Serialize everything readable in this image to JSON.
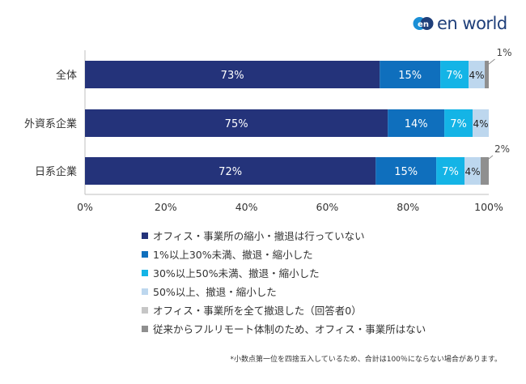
{
  "logo": {
    "mark_text": "en",
    "word": "en world"
  },
  "colors": {
    "none": "#24337a",
    "s1": "#0f6fbd",
    "s2": "#14b4e6",
    "s3": "#bdd7ee",
    "s4": "#c6c6c6",
    "s5": "#8f8f8f",
    "axis": "#bfbfbf",
    "logo_blue": "#1f3f7a",
    "logo_mark": "#1a8fd6"
  },
  "chart_data": {
    "type": "bar",
    "orientation": "horizontal",
    "stacked": true,
    "categories": [
      "全体",
      "外資系企業",
      "日系企業"
    ],
    "series": [
      {
        "name": "オフィス・事業所の縮小・撤退は行っていない",
        "values": [
          73,
          75,
          72
        ],
        "labels": [
          "73%",
          "75%",
          "72%"
        ],
        "color": "#24337a"
      },
      {
        "name": "1%以上30%未満、撤退・縮小した",
        "values": [
          15,
          14,
          15
        ],
        "labels": [
          "15%",
          "14%",
          "15%"
        ],
        "color": "#0f6fbd"
      },
      {
        "name": "30%以上50%未満、撤退・縮小した",
        "values": [
          7,
          7,
          7
        ],
        "labels": [
          "7%",
          "7%",
          "7%"
        ],
        "color": "#14b4e6"
      },
      {
        "name": "50%以上、撤退・縮小した",
        "values": [
          4,
          4,
          4
        ],
        "labels": [
          "4%",
          "4%",
          "4%"
        ],
        "color": "#bdd7ee"
      },
      {
        "name": "オフィス・事業所を全て撤退した（回答者0）",
        "values": [
          0,
          0,
          0
        ],
        "labels": [
          "",
          "",
          ""
        ],
        "color": "#c6c6c6"
      },
      {
        "name": "従来からフルリモート体制のため、オフィス・事業所はない",
        "values": [
          1,
          0,
          2
        ],
        "labels": [
          "1%",
          "",
          "2%"
        ],
        "color": "#8f8f8f"
      }
    ],
    "xlim": [
      0,
      100
    ],
    "xticks": [
      "0%",
      "20%",
      "40%",
      "60%",
      "80%",
      "100%"
    ],
    "legend_position": "bottom",
    "grid": false
  },
  "footnote": "*小数点第一位を四捨五入しているため、合計は100％にならない場合があります。"
}
